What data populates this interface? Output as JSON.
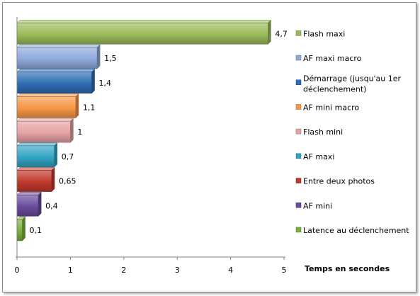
{
  "chart_data": {
    "type": "bar",
    "orientation": "horizontal",
    "title": "",
    "xlabel": "Temps en secondes",
    "ylabel": "",
    "xlim": [
      0,
      5
    ],
    "x_ticks": [
      "0",
      "1",
      "2",
      "3",
      "4",
      "5"
    ],
    "grid": false,
    "legend_position": "right",
    "series": [
      {
        "name": "Flash maxi",
        "value": 4.7,
        "label": "4,7",
        "color": "#9bbb59"
      },
      {
        "name": "AF maxi macro",
        "value": 1.5,
        "label": "1,5",
        "color": "#8ea9db"
      },
      {
        "name": "Démarrage (jusqu'au 1er déclenchement)",
        "lines": [
          "Démarrage (jusqu'au 1er",
          "déclenchement)"
        ],
        "value": 1.4,
        "label": "1,4",
        "color": "#2e6db4"
      },
      {
        "name": "AF mini macro",
        "value": 1.1,
        "label": "1,1",
        "color": "#f79646"
      },
      {
        "name": "Flash mini",
        "value": 1,
        "label": "1",
        "color": "#e6a3a3"
      },
      {
        "name": "AF maxi",
        "value": 0.7,
        "label": "0,7",
        "color": "#31a4c4"
      },
      {
        "name": "Entre deux photos",
        "value": 0.65,
        "label": "0,65",
        "color": "#c0392b"
      },
      {
        "name": "AF mini",
        "value": 0.4,
        "label": "0,4",
        "color": "#6a4a9c"
      },
      {
        "name": "Latence au déclenchement",
        "value": 0.1,
        "label": "0,1",
        "color": "#7ab03a"
      }
    ]
  }
}
